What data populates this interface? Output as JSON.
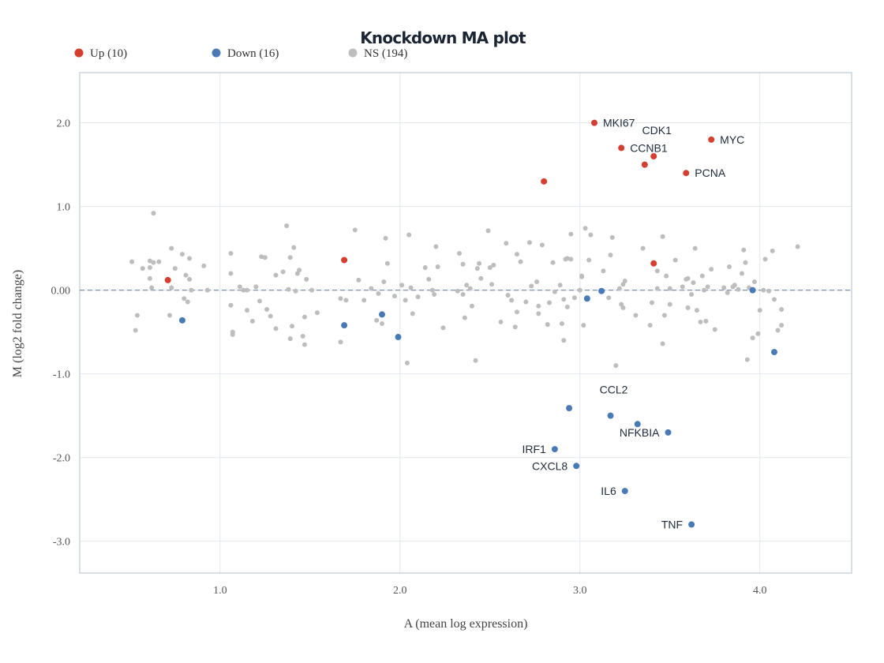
{
  "chart_data": {
    "type": "scatter",
    "title": "Knockdown MA plot",
    "xlabel": "A (mean log expression)",
    "ylabel": "M (log2 fold change)",
    "xlim": [
      0.22,
      4.51
    ],
    "ylim": [
      -3.38,
      2.6
    ],
    "x_ticks": [
      1.0,
      2.0,
      3.0,
      4.0
    ],
    "x_tick_labels": [
      "1.0",
      "2.0",
      "3.0",
      "4.0"
    ],
    "y_ticks": [
      2.0,
      1.0,
      0.0,
      -1.0,
      -2.0,
      -3.0
    ],
    "y_tick_labels": [
      "2.0",
      "1.0",
      "0.00",
      "-1.0",
      "-2.0",
      "-3.0"
    ],
    "reference_line": 0,
    "grid": true,
    "legend_position": "top-left",
    "colors": {
      "up": "#d43f2f",
      "down": "#4a7ab5",
      "ns": "#bdbdbd",
      "grid": "#e1e7ee",
      "frame": "#c9d3de",
      "ref": "#7f93ad"
    },
    "legend": [
      {
        "label": "Up (10)",
        "group": "up"
      },
      {
        "label": "Down (16)",
        "group": "down"
      },
      {
        "label": "NS (194)",
        "group": "ns"
      }
    ],
    "labeled_points": [
      {
        "label": "MKI67",
        "x": 3.08,
        "y": 2.0,
        "group": "up",
        "side": "right"
      },
      {
        "label": "CDK1",
        "x": 3.41,
        "y": 1.6,
        "group": "up",
        "side": "above"
      },
      {
        "label": "MYC",
        "x": 3.73,
        "y": 1.8,
        "group": "up",
        "side": "right"
      },
      {
        "label": "CCNB1",
        "x": 3.23,
        "y": 1.7,
        "group": "up",
        "side": "right"
      },
      {
        "label": "PCNA",
        "x": 3.59,
        "y": 1.4,
        "group": "up",
        "side": "right"
      },
      {
        "label": "CCL2",
        "x": 3.17,
        "y": -1.5,
        "group": "down",
        "side": "above"
      },
      {
        "label": "NFKBIA",
        "x": 3.49,
        "y": -1.7,
        "group": "down",
        "side": "left"
      },
      {
        "label": "IRF1",
        "x": 2.86,
        "y": -1.9,
        "group": "down",
        "side": "left"
      },
      {
        "label": "CXCL8",
        "x": 2.98,
        "y": -2.1,
        "group": "down",
        "side": "left"
      },
      {
        "label": "IL6",
        "x": 3.25,
        "y": -2.4,
        "group": "down",
        "side": "left"
      },
      {
        "label": "TNF",
        "x": 3.62,
        "y": -2.8,
        "group": "down",
        "side": "left"
      }
    ],
    "up_points": [
      [
        3.36,
        1.5
      ],
      [
        2.8,
        1.3
      ],
      [
        1.69,
        0.36
      ],
      [
        0.71,
        0.12
      ],
      [
        3.41,
        0.32
      ]
    ],
    "down_points": [
      [
        2.94,
        -1.41
      ],
      [
        3.32,
        -1.6
      ],
      [
        0.79,
        -0.36
      ],
      [
        1.69,
        -0.42
      ],
      [
        1.9,
        -0.29
      ],
      [
        1.99,
        -0.56
      ],
      [
        3.04,
        -0.1
      ],
      [
        3.12,
        -0.01
      ],
      [
        3.96,
        -0.0
      ],
      [
        4.08,
        -0.74
      ]
    ],
    "ns_points": [
      [
        0.51,
        0.34
      ],
      [
        0.53,
        -0.48
      ],
      [
        0.54,
        -0.3
      ],
      [
        0.57,
        0.26
      ],
      [
        0.61,
        0.35
      ],
      [
        0.61,
        0.27
      ],
      [
        0.61,
        0.14
      ],
      [
        0.62,
        0.03
      ],
      [
        0.63,
        0.33
      ],
      [
        0.63,
        0.92
      ],
      [
        0.66,
        0.34
      ],
      [
        0.72,
        -0.3
      ],
      [
        0.73,
        0.5
      ],
      [
        0.73,
        0.03
      ],
      [
        0.75,
        0.26
      ],
      [
        0.79,
        0.43
      ],
      [
        0.8,
        -0.1
      ],
      [
        0.81,
        0.18
      ],
      [
        0.82,
        -0.14
      ],
      [
        0.83,
        0.13
      ],
      [
        0.83,
        0.38
      ],
      [
        0.84,
        0.0
      ],
      [
        0.91,
        0.29
      ],
      [
        0.93,
        0.0
      ],
      [
        1.06,
        0.2
      ],
      [
        1.06,
        -0.18
      ],
      [
        1.06,
        0.44
      ],
      [
        1.07,
        -0.5
      ],
      [
        1.07,
        -0.53
      ],
      [
        1.11,
        0.04
      ],
      [
        1.13,
        -0.0
      ],
      [
        1.15,
        -0.24
      ],
      [
        1.15,
        0.0
      ],
      [
        1.18,
        -0.37
      ],
      [
        1.2,
        0.04
      ],
      [
        1.22,
        -0.13
      ],
      [
        1.23,
        0.4
      ],
      [
        1.25,
        0.39
      ],
      [
        1.26,
        -0.23
      ],
      [
        1.28,
        -0.31
      ],
      [
        1.31,
        -0.46
      ],
      [
        1.31,
        0.18
      ],
      [
        1.35,
        0.22
      ],
      [
        1.37,
        0.77
      ],
      [
        1.38,
        0.01
      ],
      [
        1.39,
        0.39
      ],
      [
        1.39,
        -0.58
      ],
      [
        1.4,
        -0.43
      ],
      [
        1.41,
        0.51
      ],
      [
        1.42,
        -0.01
      ],
      [
        1.43,
        0.2
      ],
      [
        1.44,
        0.24
      ],
      [
        1.46,
        -0.55
      ],
      [
        1.47,
        -0.65
      ],
      [
        1.47,
        -0.32
      ],
      [
        1.48,
        0.13
      ],
      [
        1.51,
        0.0
      ],
      [
        1.54,
        -0.27
      ],
      [
        1.67,
        -0.62
      ],
      [
        1.67,
        -0.1
      ],
      [
        1.7,
        -0.12
      ],
      [
        1.75,
        0.72
      ],
      [
        1.77,
        0.12
      ],
      [
        1.8,
        -0.12
      ],
      [
        1.84,
        0.02
      ],
      [
        1.87,
        -0.36
      ],
      [
        1.88,
        -0.04
      ],
      [
        1.9,
        -0.4
      ],
      [
        1.91,
        0.1
      ],
      [
        1.92,
        0.62
      ],
      [
        1.93,
        0.32
      ],
      [
        1.97,
        -0.07
      ],
      [
        2.01,
        0.06
      ],
      [
        2.03,
        -0.12
      ],
      [
        2.04,
        -0.87
      ],
      [
        2.05,
        0.66
      ],
      [
        2.06,
        0.03
      ],
      [
        2.07,
        -0.28
      ],
      [
        2.1,
        -0.08
      ],
      [
        2.14,
        0.27
      ],
      [
        2.16,
        0.13
      ],
      [
        2.18,
        0.0
      ],
      [
        2.19,
        -0.05
      ],
      [
        2.2,
        0.52
      ],
      [
        2.21,
        0.28
      ],
      [
        2.24,
        -0.45
      ],
      [
        2.32,
        -0.01
      ],
      [
        2.33,
        0.44
      ],
      [
        2.35,
        -0.05
      ],
      [
        2.35,
        0.31
      ],
      [
        2.36,
        -0.33
      ],
      [
        2.37,
        0.06
      ],
      [
        2.39,
        0.02
      ],
      [
        2.4,
        -0.19
      ],
      [
        2.42,
        -0.84
      ],
      [
        2.43,
        0.26
      ],
      [
        2.44,
        0.32
      ],
      [
        2.45,
        0.14
      ],
      [
        2.49,
        0.71
      ],
      [
        2.5,
        0.27
      ],
      [
        2.51,
        0.07
      ],
      [
        2.52,
        0.3
      ],
      [
        2.56,
        -0.38
      ],
      [
        2.59,
        0.56
      ],
      [
        2.6,
        -0.06
      ],
      [
        2.62,
        -0.12
      ],
      [
        2.64,
        -0.44
      ],
      [
        2.65,
        0.43
      ],
      [
        2.65,
        -0.26
      ],
      [
        2.67,
        0.34
      ],
      [
        2.7,
        -0.14
      ],
      [
        2.72,
        0.57
      ],
      [
        2.73,
        0.05
      ],
      [
        2.76,
        0.1
      ],
      [
        2.77,
        -0.19
      ],
      [
        2.77,
        -0.28
      ],
      [
        2.79,
        0.54
      ],
      [
        2.82,
        -0.41
      ],
      [
        2.83,
        -0.15
      ],
      [
        2.85,
        0.33
      ],
      [
        2.86,
        -0.02
      ],
      [
        2.89,
        0.06
      ],
      [
        2.9,
        -0.4
      ],
      [
        2.91,
        -0.6
      ],
      [
        2.91,
        -0.11
      ],
      [
        2.92,
        0.37
      ],
      [
        2.93,
        0.38
      ],
      [
        2.93,
        -0.2
      ],
      [
        2.95,
        0.67
      ],
      [
        2.95,
        0.37
      ],
      [
        2.97,
        -0.09
      ],
      [
        3.0,
        -0.0
      ],
      [
        3.01,
        0.16
      ],
      [
        3.01,
        0.17
      ],
      [
        3.02,
        -0.42
      ],
      [
        3.03,
        0.74
      ],
      [
        3.05,
        0.36
      ],
      [
        3.06,
        0.66
      ],
      [
        3.13,
        0.23
      ],
      [
        3.16,
        -0.09
      ],
      [
        3.17,
        0.42
      ],
      [
        3.18,
        0.63
      ],
      [
        3.2,
        -0.9
      ],
      [
        3.22,
        0.02
      ],
      [
        3.23,
        -0.17
      ],
      [
        3.24,
        -0.21
      ],
      [
        3.24,
        0.07
      ],
      [
        3.25,
        0.11
      ],
      [
        3.31,
        -0.3
      ],
      [
        3.35,
        0.5
      ],
      [
        3.39,
        -0.42
      ],
      [
        3.4,
        -0.15
      ],
      [
        3.43,
        0.23
      ],
      [
        3.43,
        0.02
      ],
      [
        3.46,
        0.64
      ],
      [
        3.46,
        -0.64
      ],
      [
        3.47,
        -0.3
      ],
      [
        3.48,
        0.17
      ],
      [
        3.5,
        0.02
      ],
      [
        3.5,
        -0.17
      ],
      [
        3.53,
        0.36
      ],
      [
        3.57,
        0.04
      ],
      [
        3.59,
        0.13
      ],
      [
        3.6,
        0.14
      ],
      [
        3.6,
        -0.21
      ],
      [
        3.62,
        -0.05
      ],
      [
        3.63,
        0.09
      ],
      [
        3.64,
        0.5
      ],
      [
        3.65,
        -0.24
      ],
      [
        3.67,
        -0.38
      ],
      [
        3.68,
        0.17
      ],
      [
        3.69,
        0.0
      ],
      [
        3.7,
        -0.37
      ],
      [
        3.71,
        0.04
      ],
      [
        3.73,
        0.25
      ],
      [
        3.75,
        -0.47
      ],
      [
        3.8,
        0.03
      ],
      [
        3.82,
        -0.03
      ],
      [
        3.83,
        0.28
      ],
      [
        3.85,
        0.04
      ],
      [
        3.88,
        0.01
      ],
      [
        3.9,
        0.2
      ],
      [
        3.91,
        0.48
      ],
      [
        3.92,
        0.33
      ],
      [
        3.93,
        -0.83
      ],
      [
        3.94,
        0.03
      ],
      [
        3.96,
        -0.57
      ],
      [
        3.97,
        0.1
      ],
      [
        3.99,
        -0.52
      ],
      [
        4.0,
        -0.24
      ],
      [
        4.03,
        0.37
      ],
      [
        4.05,
        -0.01
      ],
      [
        4.07,
        0.47
      ],
      [
        4.08,
        -0.11
      ],
      [
        4.1,
        -0.48
      ],
      [
        4.12,
        -0.23
      ],
      [
        4.12,
        -0.42
      ],
      [
        4.21,
        0.52
      ],
      [
        4.02,
        0.0
      ],
      [
        3.86,
        0.06
      ]
    ]
  }
}
